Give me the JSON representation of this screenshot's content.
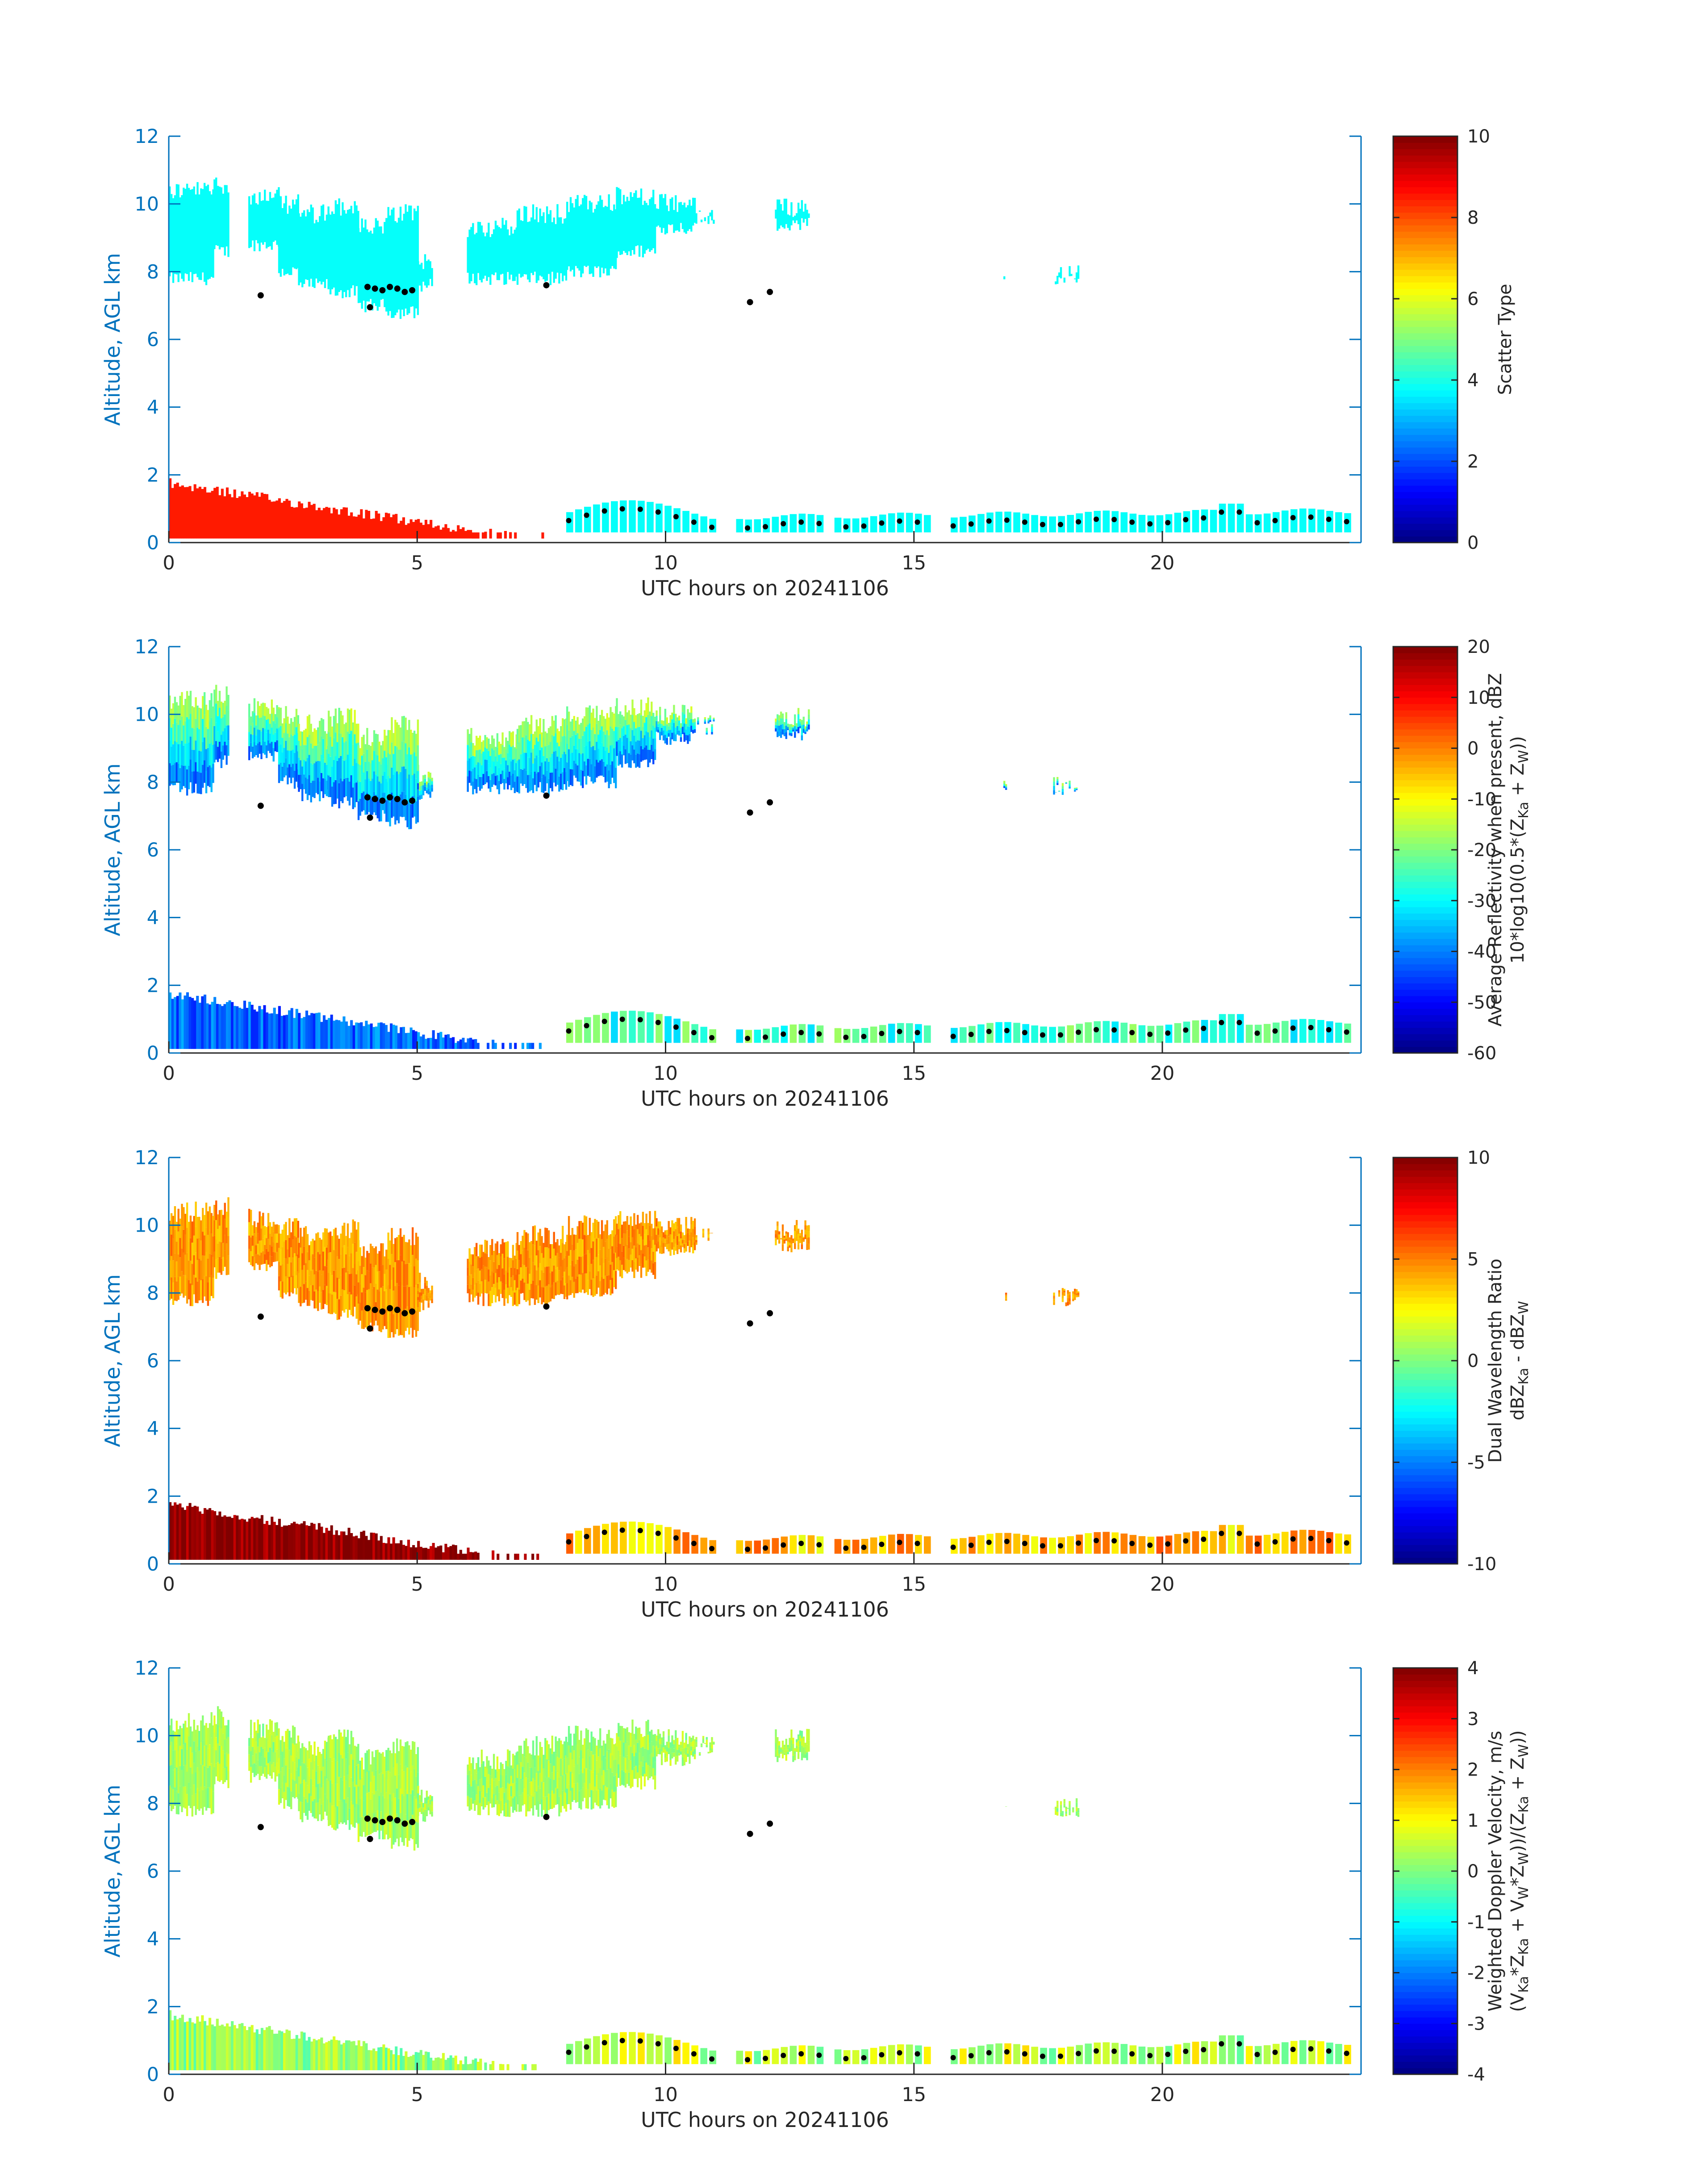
{
  "chart_data": [
    {
      "type": "heatmap",
      "title": "",
      "xlabel": "UTC hours on 20241106",
      "ylabel": "Altitude, AGL km",
      "xlim": [
        0,
        24
      ],
      "ylim": [
        0,
        12
      ],
      "x_ticks": [
        "0",
        "5",
        "10",
        "15",
        "20"
      ],
      "y_ticks": [
        "0",
        "2",
        "4",
        "6",
        "8",
        "10",
        "12"
      ],
      "colorbar": {
        "label_lines": [
          "Scatter Type"
        ],
        "range": [
          0,
          10
        ],
        "ticks": [
          "0",
          "2",
          "4",
          "6",
          "8",
          "10"
        ]
      },
      "features": [
        {
          "name": "upper cloud",
          "value": 3.8,
          "x_range": [
            0,
            11
          ],
          "z_range": [
            6.8,
            10.9
          ]
        },
        {
          "name": "upper cloud",
          "value": 3.8,
          "x_range": [
            12.2,
            12.9
          ],
          "z_range": [
            9.4,
            10.2
          ]
        },
        {
          "name": "upper cloud",
          "value": 3.8,
          "x_range": [
            17.8,
            18.3
          ],
          "z_range": [
            7.8,
            8.2
          ]
        },
        {
          "name": "low layer",
          "value": 8.5,
          "x_range": [
            0,
            7.5
          ],
          "z_range": [
            0,
            1.9
          ]
        },
        {
          "name": "low cloud",
          "value": 3.8,
          "x_range": [
            8,
            23.8
          ],
          "z_range": [
            0.3,
            1.3
          ]
        }
      ]
    },
    {
      "type": "heatmap",
      "title": "",
      "xlabel": "UTC hours on 20241106",
      "ylabel": "Altitude, AGL km",
      "xlim": [
        0,
        24
      ],
      "ylim": [
        0,
        12
      ],
      "x_ticks": [
        "0",
        "5",
        "10",
        "15",
        "20"
      ],
      "y_ticks": [
        "0",
        "2",
        "4",
        "6",
        "8",
        "10",
        "12"
      ],
      "colorbar": {
        "label_lines": [
          "Average Reflectivity when present, dBZ",
          "10*log10(0.5*(Z",
          "Ka",
          " + Z",
          "W",
          "))"
        ],
        "range": [
          -60,
          20
        ],
        "ticks": [
          "-60",
          "-50",
          "-40",
          "-30",
          "-20",
          "-10",
          "0",
          "10",
          "20"
        ]
      },
      "features": [
        {
          "name": "upper cloud",
          "value": -18,
          "x_range": [
            0,
            11
          ],
          "z_range": [
            6.8,
            10.9
          ]
        },
        {
          "name": "low layer",
          "value": -42,
          "x_range": [
            0,
            7.5
          ],
          "z_range": [
            0,
            1.9
          ]
        },
        {
          "name": "low cloud",
          "value": -25,
          "x_range": [
            8,
            23.8
          ],
          "z_range": [
            0.3,
            1.3
          ]
        }
      ]
    },
    {
      "type": "heatmap",
      "title": "",
      "xlabel": "UTC hours on 20241106",
      "ylabel": "Altitude, AGL km",
      "xlim": [
        0,
        24
      ],
      "ylim": [
        0,
        12
      ],
      "x_ticks": [
        "0",
        "5",
        "10",
        "15",
        "20"
      ],
      "y_ticks": [
        "0",
        "2",
        "4",
        "6",
        "8",
        "10",
        "12"
      ],
      "colorbar": {
        "label_lines": [
          "Dual Wavelength Ratio",
          "dBZ",
          "Ka",
          " - dBZ",
          "W"
        ],
        "range": [
          -10,
          10
        ],
        "ticks": [
          "-10",
          "-5",
          "0",
          "5",
          "10"
        ]
      },
      "features": [
        {
          "name": "upper cloud",
          "value": 4.5,
          "x_range": [
            0,
            11
          ],
          "z_range": [
            6.8,
            10.9
          ]
        },
        {
          "name": "low layer",
          "value": 10,
          "x_range": [
            0,
            7.5
          ],
          "z_range": [
            0.2,
            1.7
          ]
        },
        {
          "name": "low cloud",
          "value": 4,
          "x_range": [
            8,
            23.8
          ],
          "z_range": [
            0.3,
            1.3
          ]
        }
      ]
    },
    {
      "type": "heatmap",
      "title": "",
      "xlabel": "UTC hours on 20241106",
      "ylabel": "Altitude, AGL km",
      "xlim": [
        0,
        24
      ],
      "ylim": [
        0,
        12
      ],
      "x_ticks": [
        "0",
        "5",
        "10",
        "15",
        "20"
      ],
      "y_ticks": [
        "0",
        "2",
        "4",
        "6",
        "8",
        "10",
        "12"
      ],
      "colorbar": {
        "label_lines": [
          "Weighted Doppler Velocity, m/s",
          "(V",
          "Ka",
          "*Z",
          "Ka",
          " + V",
          "W",
          "*Z",
          "W",
          "))/(Z",
          "Ka",
          " + Z",
          "W",
          "))"
        ],
        "range": [
          -4,
          4
        ],
        "ticks": [
          "-4",
          "-3",
          "-2",
          "-1",
          "0",
          "1",
          "2",
          "3",
          "4"
        ]
      },
      "features": [
        {
          "name": "upper cloud",
          "value": 0.3,
          "x_range": [
            0,
            11
          ],
          "z_range": [
            6.8,
            10.9
          ]
        },
        {
          "name": "low layer",
          "value": 0.2,
          "x_range": [
            0,
            7.5
          ],
          "z_range": [
            0,
            1.9
          ]
        },
        {
          "name": "low cloud",
          "value": 0.5,
          "x_range": [
            8,
            23.8
          ],
          "z_range": [
            0.3,
            1.3
          ]
        }
      ]
    }
  ]
}
